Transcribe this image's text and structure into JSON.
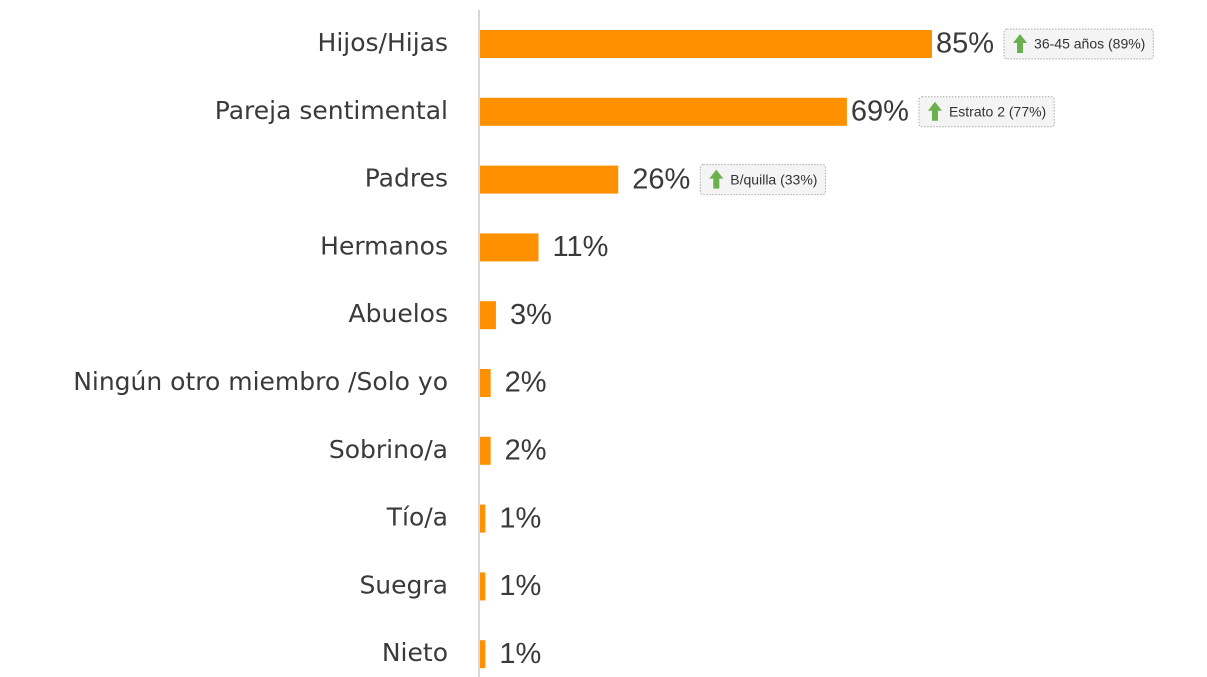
{
  "chart_data": {
    "type": "bar",
    "orientation": "horizontal",
    "categories": [
      "Hijos/Hijas",
      "Pareja sentimental",
      "Padres",
      "Hermanos",
      "Abuelos",
      "Ningún otro miembro /Solo yo",
      "Sobrino/a",
      "Tío/a",
      "Suegra",
      "Nieto"
    ],
    "values": [
      85,
      69,
      26,
      11,
      3,
      2,
      2,
      1,
      1,
      1
    ],
    "value_labels": [
      "85%",
      "69%",
      "26%",
      "11%",
      "3%",
      "2%",
      "2%",
      "1%",
      "1%",
      "1%"
    ],
    "color": "#ff9000",
    "annotations": [
      "36-45 años (89%)",
      "Estrato 2 (77%)",
      "B/quilla (33%)"
    ],
    "annotation_color": "#6ab04c"
  }
}
